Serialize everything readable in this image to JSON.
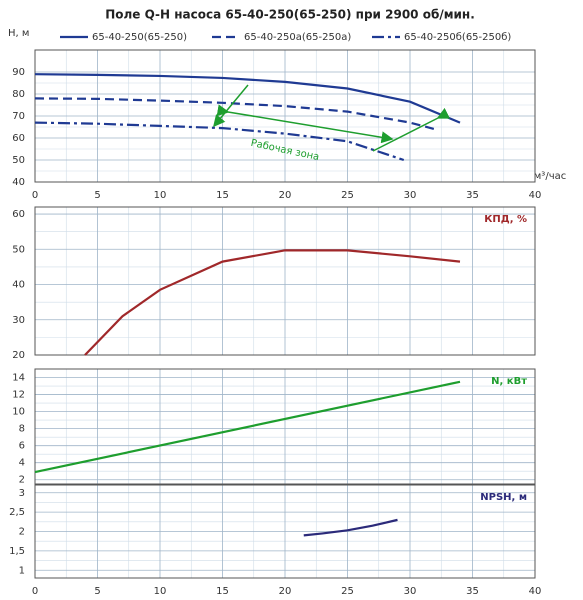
{
  "chart_data": [
    {
      "type": "line",
      "title": "Поле Q-H насоса 65-40-250(65-250) при 2900 об/мин.",
      "ylabel": "Н, м",
      "xlabel": "м³/час",
      "xlim": [
        0,
        40
      ],
      "xticks": [
        0,
        5,
        10,
        15,
        20,
        25,
        30,
        35,
        40
      ],
      "ylim": [
        40,
        100
      ],
      "yticks": [
        40,
        50,
        60,
        70,
        80,
        90
      ],
      "grid": true,
      "annotations": [
        "Рабочая зона"
      ],
      "series": [
        {
          "name": "65-40-250(65-250)",
          "color": "#1f3a93",
          "dash": "solid",
          "x": [
            0,
            5,
            10,
            15,
            20,
            25,
            30,
            34
          ],
          "values": [
            89,
            88.7,
            88.2,
            87.3,
            85.5,
            82.5,
            76.5,
            67
          ]
        },
        {
          "name": "65-40-250а(65-250а)",
          "color": "#1f3a93",
          "dash": "dashed",
          "x": [
            0,
            5,
            10,
            15,
            20,
            25,
            30,
            32
          ],
          "values": [
            78,
            77.8,
            77,
            76,
            74.5,
            72,
            67,
            64
          ]
        },
        {
          "name": "65-40-250б(65-250б)",
          "color": "#1f3a93",
          "dash": "dashdot",
          "x": [
            0,
            5,
            10,
            15,
            20,
            25,
            29.5
          ],
          "values": [
            67,
            66.5,
            65.5,
            64.5,
            62,
            58.5,
            50
          ]
        }
      ]
    },
    {
      "type": "line",
      "ylabel": "КПД, %",
      "xlim": [
        0,
        40
      ],
      "ylim": [
        20,
        62
      ],
      "yticks": [
        20,
        30,
        40,
        50,
        60
      ],
      "grid": true,
      "series": [
        {
          "color": "#a0282a",
          "x": [
            4,
            7,
            10,
            15,
            20,
            25,
            30,
            34
          ],
          "values": [
            20,
            31,
            38.5,
            46.5,
            49.7,
            49.7,
            48,
            46.5
          ]
        }
      ]
    },
    {
      "type": "line",
      "ylabel": "N, кВт",
      "xlim": [
        0,
        40
      ],
      "ylim": [
        1.5,
        15
      ],
      "yticks": [
        2,
        4,
        6,
        8,
        10,
        12,
        14
      ],
      "grid": true,
      "series": [
        {
          "color": "#1e9e2e",
          "x": [
            0,
            34
          ],
          "values": [
            2.9,
            13.5
          ]
        }
      ]
    },
    {
      "type": "line",
      "ylabel": "NPSH, м",
      "xlim": [
        0,
        40
      ],
      "xticks": [
        0,
        5,
        10,
        15,
        20,
        25,
        30,
        35,
        40
      ],
      "ylim": [
        0.8,
        3.2
      ],
      "yticks": [
        1,
        {
          "value": 1.5,
          "label": "1,5"
        },
        2,
        {
          "value": 2.5,
          "label": "2,5"
        },
        3
      ],
      "grid": true,
      "series": [
        {
          "color": "#2b2a7a",
          "x": [
            21.5,
            23,
            25,
            27,
            29
          ],
          "values": [
            1.9,
            1.95,
            2.03,
            2.15,
            2.3
          ]
        }
      ]
    }
  ]
}
